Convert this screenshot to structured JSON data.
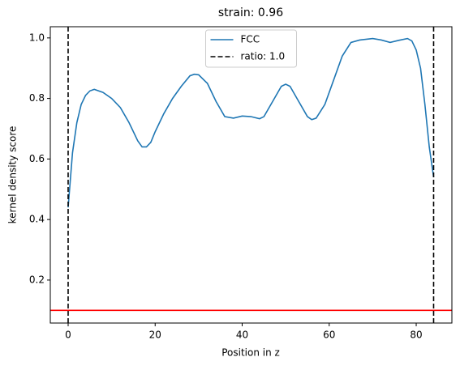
{
  "chart_data": {
    "type": "line",
    "title": "strain: 0.96",
    "x_label": "Position in z",
    "y_label": "kernel density score",
    "x": [
      0,
      1,
      2,
      3,
      4,
      5,
      6,
      8,
      10,
      12,
      14,
      16,
      17,
      18,
      19,
      20,
      22,
      24,
      26,
      28,
      29,
      30,
      32,
      34,
      36,
      38,
      40,
      42,
      44,
      45,
      47,
      49,
      50,
      51,
      53,
      55,
      56,
      57,
      59,
      61,
      63,
      65,
      67,
      70,
      72,
      74,
      76,
      78,
      79,
      80,
      81,
      82,
      83,
      84
    ],
    "series": [
      {
        "name": "FCC",
        "color": "#1f77b4",
        "values": [
          0.44,
          0.62,
          0.72,
          0.78,
          0.81,
          0.825,
          0.83,
          0.82,
          0.8,
          0.77,
          0.72,
          0.66,
          0.64,
          0.64,
          0.655,
          0.69,
          0.75,
          0.8,
          0.84,
          0.875,
          0.88,
          0.878,
          0.85,
          0.79,
          0.74,
          0.735,
          0.742,
          0.74,
          0.733,
          0.74,
          0.79,
          0.84,
          0.847,
          0.84,
          0.79,
          0.74,
          0.73,
          0.735,
          0.78,
          0.86,
          0.94,
          0.985,
          0.993,
          0.998,
          0.993,
          0.985,
          0.992,
          0.998,
          0.99,
          0.96,
          0.9,
          0.78,
          0.64,
          0.54
        ]
      }
    ],
    "vlines": {
      "name": "ratio: 1.0",
      "color": "#000000",
      "values": [
        0,
        84
      ]
    },
    "hline": {
      "value": 0.1,
      "color": "#ff0000"
    },
    "xlim": [
      -4.1,
      88.2
    ],
    "xticks": [
      0,
      20,
      40,
      60,
      80
    ],
    "ylim": [
      0.058,
      1.037
    ],
    "yticks": [
      0.2,
      0.4,
      0.6,
      0.8,
      {
        "value": 1,
        "label": "1.0"
      }
    ],
    "legend": "upper center"
  }
}
